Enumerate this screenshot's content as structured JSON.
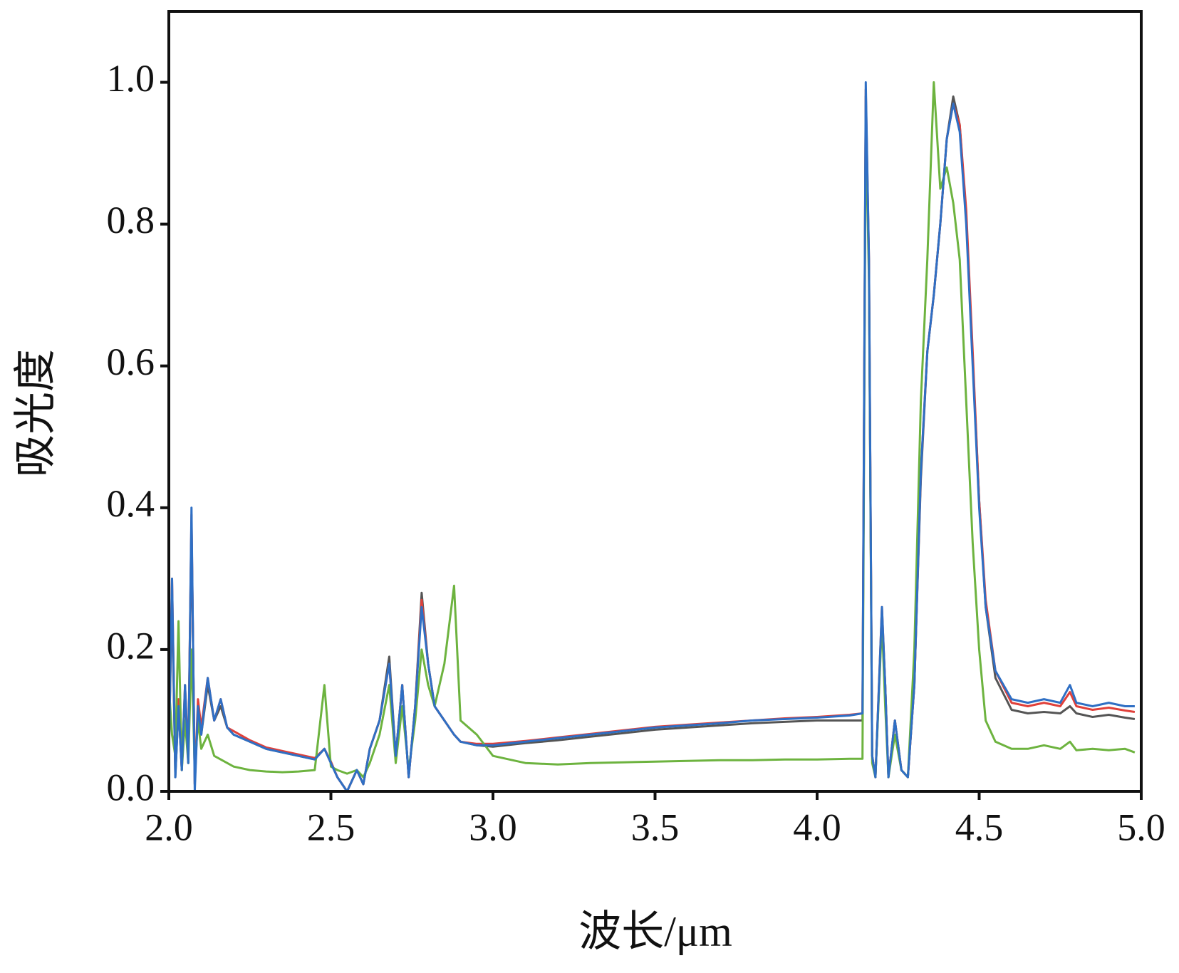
{
  "chart_data": {
    "type": "line",
    "x_label": "波长/μm",
    "y_label": "吸光度",
    "xlim": [
      2.0,
      5.0
    ],
    "ylim": [
      0,
      1.1
    ],
    "xticks": [
      {
        "value": 2.0,
        "label": "2.0"
      },
      2.5,
      {
        "value": 3.0,
        "label": "3.0"
      },
      3.5,
      {
        "value": 4.0,
        "label": "4.0"
      },
      4.5,
      {
        "value": 5.0,
        "label": "5.0"
      }
    ],
    "yticks": [
      {
        "value": 0,
        "label": "0.0"
      },
      0.2,
      0.4,
      0.6,
      0.8,
      {
        "value": 1.0,
        "label": "1.0"
      }
    ],
    "x": [
      2.0,
      2.01,
      2.02,
      2.03,
      2.04,
      2.05,
      2.06,
      2.07,
      2.08,
      2.09,
      2.1,
      2.12,
      2.14,
      2.16,
      2.18,
      2.2,
      2.25,
      2.3,
      2.35,
      2.4,
      2.45,
      2.48,
      2.5,
      2.52,
      2.55,
      2.58,
      2.6,
      2.62,
      2.65,
      2.68,
      2.7,
      2.72,
      2.74,
      2.76,
      2.78,
      2.8,
      2.82,
      2.85,
      2.88,
      2.9,
      2.95,
      3.0,
      3.1,
      3.2,
      3.3,
      3.4,
      3.5,
      3.6,
      3.7,
      3.8,
      3.9,
      4.0,
      4.1,
      4.14,
      4.15,
      4.16,
      4.17,
      4.18,
      4.2,
      4.21,
      4.22,
      4.24,
      4.26,
      4.28,
      4.3,
      4.32,
      4.34,
      4.36,
      4.38,
      4.4,
      4.42,
      4.44,
      4.46,
      4.48,
      4.5,
      4.52,
      4.55,
      4.6,
      4.65,
      4.7,
      4.75,
      4.78,
      4.8,
      4.85,
      4.9,
      4.95,
      4.98
    ],
    "series": [
      {
        "color": "#555555",
        "values": [
          0.05,
          0.28,
          0.02,
          0.12,
          0.03,
          0.14,
          0.04,
          0.38,
          0.01,
          0.12,
          0.08,
          0.15,
          0.1,
          0.12,
          0.09,
          0.08,
          0.07,
          0.06,
          0.055,
          0.05,
          0.045,
          0.06,
          0.04,
          0.02,
          0.0,
          0.03,
          0.01,
          0.06,
          0.1,
          0.19,
          0.05,
          0.15,
          0.02,
          0.12,
          0.28,
          0.18,
          0.12,
          0.1,
          0.08,
          0.07,
          0.065,
          0.063,
          0.068,
          0.072,
          0.077,
          0.082,
          0.087,
          0.09,
          0.093,
          0.096,
          0.098,
          0.1,
          0.1,
          0.1,
          0.98,
          0.74,
          0.05,
          0.02,
          0.25,
          0.15,
          0.02,
          0.1,
          0.03,
          0.02,
          0.15,
          0.44,
          0.62,
          0.7,
          0.8,
          0.92,
          0.98,
          0.94,
          0.81,
          0.61,
          0.41,
          0.26,
          0.16,
          0.115,
          0.11,
          0.112,
          0.11,
          0.12,
          0.11,
          0.105,
          0.108,
          0.104,
          0.102
        ]
      },
      {
        "color": "#e0403a",
        "values": [
          0.06,
          0.3,
          0.03,
          0.13,
          0.03,
          0.15,
          0.05,
          0.39,
          0.01,
          0.13,
          0.09,
          0.16,
          0.1,
          0.13,
          0.09,
          0.085,
          0.072,
          0.062,
          0.057,
          0.052,
          0.047,
          0.06,
          0.042,
          0.02,
          0.0,
          0.03,
          0.01,
          0.06,
          0.1,
          0.18,
          0.05,
          0.15,
          0.02,
          0.12,
          0.27,
          0.18,
          0.12,
          0.1,
          0.08,
          0.07,
          0.067,
          0.067,
          0.071,
          0.076,
          0.081,
          0.086,
          0.091,
          0.094,
          0.097,
          0.1,
          0.103,
          0.105,
          0.108,
          0.11,
          0.99,
          0.75,
          0.05,
          0.02,
          0.26,
          0.15,
          0.02,
          0.1,
          0.03,
          0.02,
          0.15,
          0.45,
          0.62,
          0.7,
          0.8,
          0.92,
          0.97,
          0.94,
          0.82,
          0.62,
          0.41,
          0.27,
          0.17,
          0.125,
          0.12,
          0.125,
          0.12,
          0.14,
          0.12,
          0.115,
          0.118,
          0.114,
          0.112
        ]
      },
      {
        "color": "#6db33f",
        "values": [
          0.15,
          0.08,
          0.05,
          0.24,
          0.03,
          0.1,
          0.04,
          0.2,
          0.03,
          0.1,
          0.06,
          0.08,
          0.05,
          0.045,
          0.04,
          0.035,
          0.03,
          0.028,
          0.027,
          0.028,
          0.03,
          0.15,
          0.035,
          0.03,
          0.025,
          0.03,
          0.02,
          0.04,
          0.08,
          0.15,
          0.04,
          0.12,
          0.03,
          0.1,
          0.2,
          0.15,
          0.12,
          0.18,
          0.29,
          0.1,
          0.08,
          0.05,
          0.04,
          0.038,
          0.04,
          0.041,
          0.042,
          0.043,
          0.044,
          0.044,
          0.045,
          0.045,
          0.046,
          0.046,
          0.95,
          0.72,
          0.04,
          0.02,
          0.24,
          0.12,
          0.02,
          0.08,
          0.03,
          0.02,
          0.2,
          0.55,
          0.75,
          1.0,
          0.85,
          0.88,
          0.83,
          0.75,
          0.55,
          0.35,
          0.2,
          0.1,
          0.07,
          0.06,
          0.06,
          0.065,
          0.06,
          0.07,
          0.058,
          0.06,
          0.058,
          0.06,
          0.055
        ]
      },
      {
        "color": "#2f6fc4",
        "values": [
          0.05,
          0.3,
          0.02,
          0.12,
          0.03,
          0.15,
          0.04,
          0.4,
          0.0,
          0.12,
          0.08,
          0.16,
          0.1,
          0.13,
          0.09,
          0.08,
          0.07,
          0.06,
          0.055,
          0.05,
          0.045,
          0.06,
          0.04,
          0.02,
          0.0,
          0.03,
          0.01,
          0.06,
          0.1,
          0.18,
          0.05,
          0.15,
          0.02,
          0.12,
          0.26,
          0.18,
          0.12,
          0.1,
          0.08,
          0.07,
          0.065,
          0.065,
          0.07,
          0.075,
          0.08,
          0.085,
          0.09,
          0.093,
          0.096,
          0.1,
          0.102,
          0.104,
          0.107,
          0.11,
          1.0,
          0.75,
          0.05,
          0.02,
          0.26,
          0.15,
          0.02,
          0.1,
          0.03,
          0.02,
          0.15,
          0.45,
          0.62,
          0.7,
          0.8,
          0.92,
          0.97,
          0.93,
          0.8,
          0.6,
          0.4,
          0.26,
          0.17,
          0.13,
          0.125,
          0.13,
          0.125,
          0.15,
          0.125,
          0.12,
          0.125,
          0.12,
          0.12
        ]
      }
    ]
  }
}
